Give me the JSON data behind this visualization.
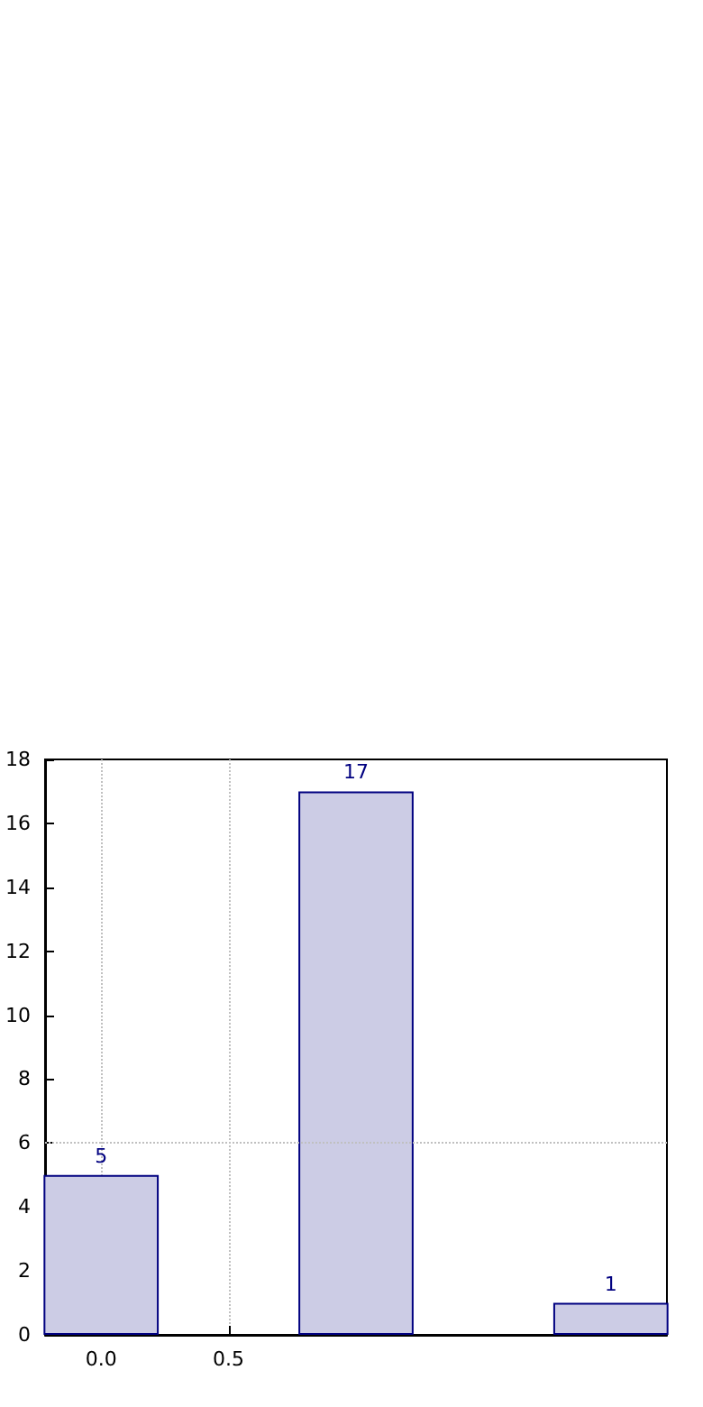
{
  "chart_data": {
    "type": "bar",
    "x": [
      0,
      1,
      2
    ],
    "values": [
      5,
      17,
      1
    ],
    "color": "#cccce5",
    "data_labels": true,
    "xlim": [
      -0.22,
      2.22
    ],
    "xticks": [
      {
        "value": 0,
        "label": "0.0"
      },
      {
        "value": 0.5,
        "label": "0.5"
      }
    ],
    "ylim": [
      0,
      18
    ],
    "yticks": [
      0,
      2,
      4,
      6,
      8,
      10,
      12,
      14,
      16,
      18
    ],
    "grid": "x",
    "ref_lines": [
      {
        "axis": "y",
        "value": 6,
        "label": null,
        "color": "#c0c0c0",
        "line_style": "dotted"
      }
    ]
  }
}
